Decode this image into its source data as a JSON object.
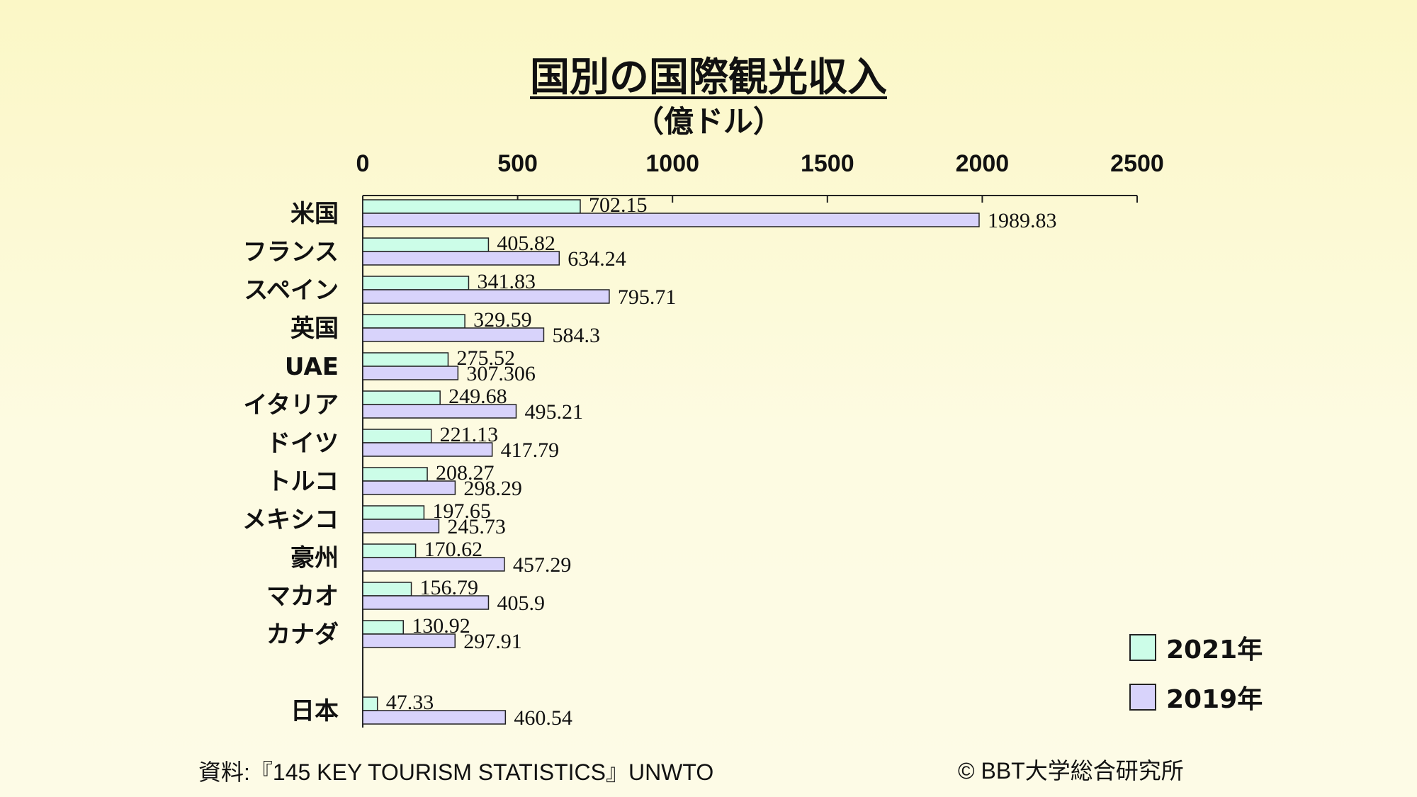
{
  "title": "国別の国際観光収入",
  "subtitle": "（億ドル）",
  "source": "資料:『145 KEY TOURISM STATISTICS』UNWTO",
  "copyright": "© BBT大学総合研究所",
  "colors": {
    "series_2021": "#ccfde8",
    "series_2019": "#d8d3fb",
    "axis": "#222222"
  },
  "chart_data": {
    "type": "bar",
    "orientation": "horizontal",
    "xlim": [
      0,
      2500
    ],
    "ticks": [
      "0",
      "500",
      "1000",
      "1500",
      "2000",
      "2500"
    ],
    "tick_values": [
      0,
      500,
      1000,
      1500,
      2000,
      2500
    ],
    "categories": [
      "米国",
      "フランス",
      "スペイン",
      "英国",
      "UAE",
      "イタリア",
      "ドイツ",
      "トルコ",
      "メキシコ",
      "豪州",
      "マカオ",
      "カナダ",
      "日本"
    ],
    "category_gap_before": [
      false,
      false,
      false,
      false,
      false,
      false,
      false,
      false,
      false,
      false,
      false,
      false,
      true
    ],
    "series": [
      {
        "name": "2021年",
        "values": [
          702.15,
          405.82,
          341.83,
          329.59,
          275.52,
          249.68,
          221.13,
          208.27,
          197.65,
          170.62,
          156.79,
          130.92,
          47.33
        ],
        "labels": [
          "702.15",
          "405.82",
          "341.83",
          "329.59",
          "275.52",
          "249.68",
          "221.13",
          "208.27",
          "197.65",
          "170.62",
          "156.79",
          "130.92",
          "47.33"
        ]
      },
      {
        "name": "2019年",
        "values": [
          1989.83,
          634.24,
          795.71,
          584.3,
          307.306,
          495.21,
          417.79,
          298.29,
          245.73,
          457.29,
          405.9,
          297.91,
          460.54
        ],
        "labels": [
          "1989.83",
          "634.24",
          "795.71",
          "584.3",
          "307.306",
          "495.21",
          "417.79",
          "298.29",
          "245.73",
          "457.29",
          "405.9",
          "297.91",
          "460.54"
        ]
      }
    ],
    "legend_position": "bottom-right",
    "grid": false
  }
}
